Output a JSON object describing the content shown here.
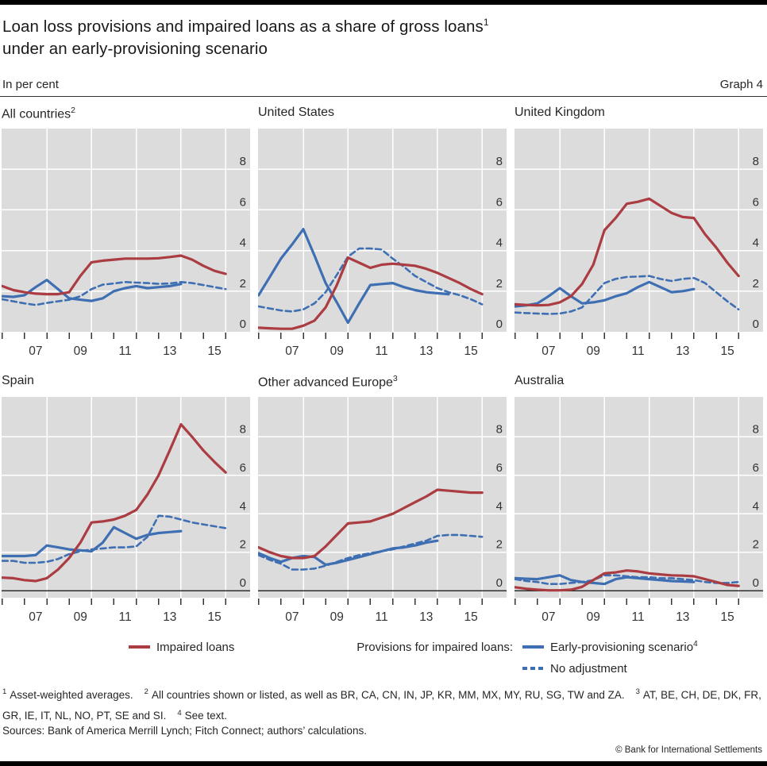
{
  "header": {
    "title_line1": "Loan loss provisions and impaired loans as a share of gross loans",
    "title_sup1": "1",
    "title_line2": "under an early-provisioning scenario",
    "unit_label": "In per cent",
    "graph_label": "Graph 4"
  },
  "legend": {
    "impaired_label": "Impaired loans",
    "group_label": "Provisions for impaired loans:",
    "early_label": "Early-provisioning scenario",
    "early_sup": "4",
    "noadj_label": "No adjustment"
  },
  "footnotes": [
    {
      "sup": "1",
      "text": "Asset-weighted averages."
    },
    {
      "sup": "2",
      "text": "All countries shown or listed, as well as BR, CA, CN, IN, JP, KR, MM, MX, MY, RU, SG, TW and ZA."
    },
    {
      "sup": "3",
      "text": "AT, BE, CH, DE, DK, FR, GR, IE, IT, NL, NO, PT, SE and SI."
    },
    {
      "sup": "4",
      "text": "See text."
    }
  ],
  "sources": "Sources: Bank of America Merrill Lynch; Fitch Connect; authors’ calculations.",
  "copyright": "© Bank for International Settlements",
  "colors": {
    "impaired": "#aa3c42",
    "provisions": "#3e6fb3",
    "plot_bg": "#dcdcdc",
    "grid": "#ffffff",
    "zero_line": "#2e2e2e",
    "axis_text": "#333333"
  },
  "chart_data": {
    "type": "line",
    "x_start": 2006,
    "x_step": 0.5,
    "x_tick_years": [
      2006,
      2007,
      2008,
      2009,
      2010,
      2011,
      2012,
      2013,
      2014,
      2015,
      2016
    ],
    "x_label_years": [
      2007,
      2009,
      2011,
      2013,
      2015
    ],
    "x_tick_labels": [
      "07",
      "09",
      "11",
      "13",
      "15"
    ],
    "y_ticks": [
      0,
      2,
      4,
      6,
      8
    ],
    "ylim_top_row": [
      0,
      10
    ],
    "ylim_bottom_row": [
      -0.4,
      10.08
    ],
    "legend_entries": [
      "Impaired loans",
      "Early-provisioning scenario",
      "No adjustment"
    ],
    "panels": [
      {
        "title": "All countries",
        "title_sup": "2",
        "row": 1,
        "impaired": [
          2.25,
          2.05,
          1.95,
          1.88,
          1.85,
          1.85,
          1.95,
          2.75,
          3.42,
          3.5,
          3.55,
          3.6,
          3.6,
          3.6,
          3.62,
          3.68,
          3.75,
          3.55,
          3.25,
          3.0,
          2.85
        ],
        "early": [
          1.75,
          1.72,
          1.8,
          2.2,
          2.55,
          2.1,
          1.65,
          1.58,
          1.52,
          1.65,
          2.0,
          2.15,
          2.25,
          2.15,
          2.2,
          2.25,
          2.35
        ],
        "noadj": [
          1.6,
          1.5,
          1.4,
          1.32,
          1.42,
          1.5,
          1.58,
          1.75,
          2.1,
          2.32,
          2.38,
          2.45,
          2.42,
          2.4,
          2.36,
          2.38,
          2.45,
          2.4,
          2.3,
          2.2,
          2.1
        ]
      },
      {
        "title": "United States",
        "title_sup": "",
        "row": 1,
        "impaired": [
          0.2,
          0.17,
          0.15,
          0.15,
          0.3,
          0.55,
          1.2,
          2.3,
          3.65,
          3.4,
          3.15,
          3.3,
          3.35,
          3.3,
          3.25,
          3.1,
          2.9,
          2.65,
          2.4,
          2.1,
          1.85
        ],
        "early": [
          1.8,
          2.7,
          3.6,
          4.3,
          5.05,
          3.75,
          2.4,
          1.45,
          0.45,
          1.4,
          2.3,
          2.35,
          2.4,
          2.2,
          2.05,
          1.95,
          1.9,
          1.85
        ],
        "noadj": [
          1.25,
          1.15,
          1.05,
          1.0,
          1.1,
          1.4,
          1.95,
          2.8,
          3.7,
          4.1,
          4.1,
          4.05,
          3.6,
          3.2,
          2.75,
          2.45,
          2.15,
          1.95,
          1.8,
          1.6,
          1.35
        ]
      },
      {
        "title": "United Kingdom",
        "title_sup": "",
        "row": 1,
        "impaired": [
          1.35,
          1.32,
          1.3,
          1.32,
          1.45,
          1.75,
          2.35,
          3.3,
          5.0,
          5.6,
          6.3,
          6.4,
          6.55,
          6.2,
          5.85,
          5.65,
          5.6,
          4.8,
          4.15,
          3.4,
          2.75
        ],
        "early": [
          1.25,
          1.3,
          1.4,
          1.75,
          2.15,
          1.75,
          1.4,
          1.45,
          1.55,
          1.75,
          1.9,
          2.2,
          2.45,
          2.2,
          1.95,
          2.0,
          2.1
        ],
        "noadj": [
          0.95,
          0.92,
          0.9,
          0.88,
          0.9,
          1.0,
          1.2,
          1.8,
          2.4,
          2.6,
          2.7,
          2.72,
          2.75,
          2.6,
          2.5,
          2.6,
          2.65,
          2.4,
          1.95,
          1.5,
          1.1
        ]
      },
      {
        "title": "Spain",
        "title_sup": "",
        "row": 2,
        "impaired": [
          0.68,
          0.65,
          0.55,
          0.5,
          0.65,
          1.1,
          1.7,
          2.5,
          3.55,
          3.6,
          3.7,
          3.9,
          4.2,
          5.0,
          6.0,
          7.3,
          8.65,
          8.0,
          7.3,
          6.7,
          6.15
        ],
        "early": [
          1.8,
          1.8,
          1.8,
          1.85,
          2.35,
          2.25,
          2.15,
          2.1,
          2.05,
          2.5,
          3.3,
          3.0,
          2.7,
          2.9,
          3.0,
          3.05,
          3.1
        ],
        "noadj": [
          1.55,
          1.55,
          1.45,
          1.45,
          1.5,
          1.65,
          1.9,
          2.05,
          2.15,
          2.2,
          2.25,
          2.25,
          2.3,
          2.8,
          3.9,
          3.85,
          3.7,
          3.55,
          3.45,
          3.35,
          3.25
        ]
      },
      {
        "title": "Other advanced Europe",
        "title_sup": "3",
        "row": 2,
        "impaired": [
          2.25,
          2.0,
          1.8,
          1.7,
          1.7,
          1.8,
          2.3,
          2.9,
          3.5,
          3.55,
          3.6,
          3.8,
          4.0,
          4.3,
          4.6,
          4.9,
          5.25,
          5.2,
          5.15,
          5.1,
          5.1
        ],
        "early": [
          1.95,
          1.7,
          1.5,
          1.7,
          1.8,
          1.75,
          1.35,
          1.45,
          1.6,
          1.75,
          1.9,
          2.05,
          2.2,
          2.25,
          2.35,
          2.5,
          2.6
        ],
        "noadj": [
          1.85,
          1.6,
          1.4,
          1.1,
          1.1,
          1.15,
          1.3,
          1.5,
          1.7,
          1.85,
          1.95,
          2.05,
          2.15,
          2.3,
          2.45,
          2.6,
          2.85,
          2.9,
          2.9,
          2.85,
          2.8
        ]
      },
      {
        "title": "Australia",
        "title_sup": "",
        "row": 2,
        "impaired": [
          0.18,
          0.1,
          0.05,
          0.02,
          0.02,
          0.05,
          0.2,
          0.55,
          0.9,
          0.95,
          1.05,
          1.0,
          0.9,
          0.85,
          0.8,
          0.78,
          0.75,
          0.6,
          0.45,
          0.3,
          0.25
        ],
        "early": [
          0.65,
          0.62,
          0.6,
          0.7,
          0.8,
          0.55,
          0.45,
          0.4,
          0.35,
          0.6,
          0.7,
          0.65,
          0.6,
          0.55,
          0.5,
          0.48,
          0.45
        ],
        "noadj": [
          0.6,
          0.5,
          0.45,
          0.35,
          0.35,
          0.4,
          0.45,
          0.55,
          0.8,
          0.8,
          0.75,
          0.7,
          0.7,
          0.65,
          0.65,
          0.6,
          0.55,
          0.45,
          0.4,
          0.4,
          0.45
        ]
      }
    ]
  }
}
